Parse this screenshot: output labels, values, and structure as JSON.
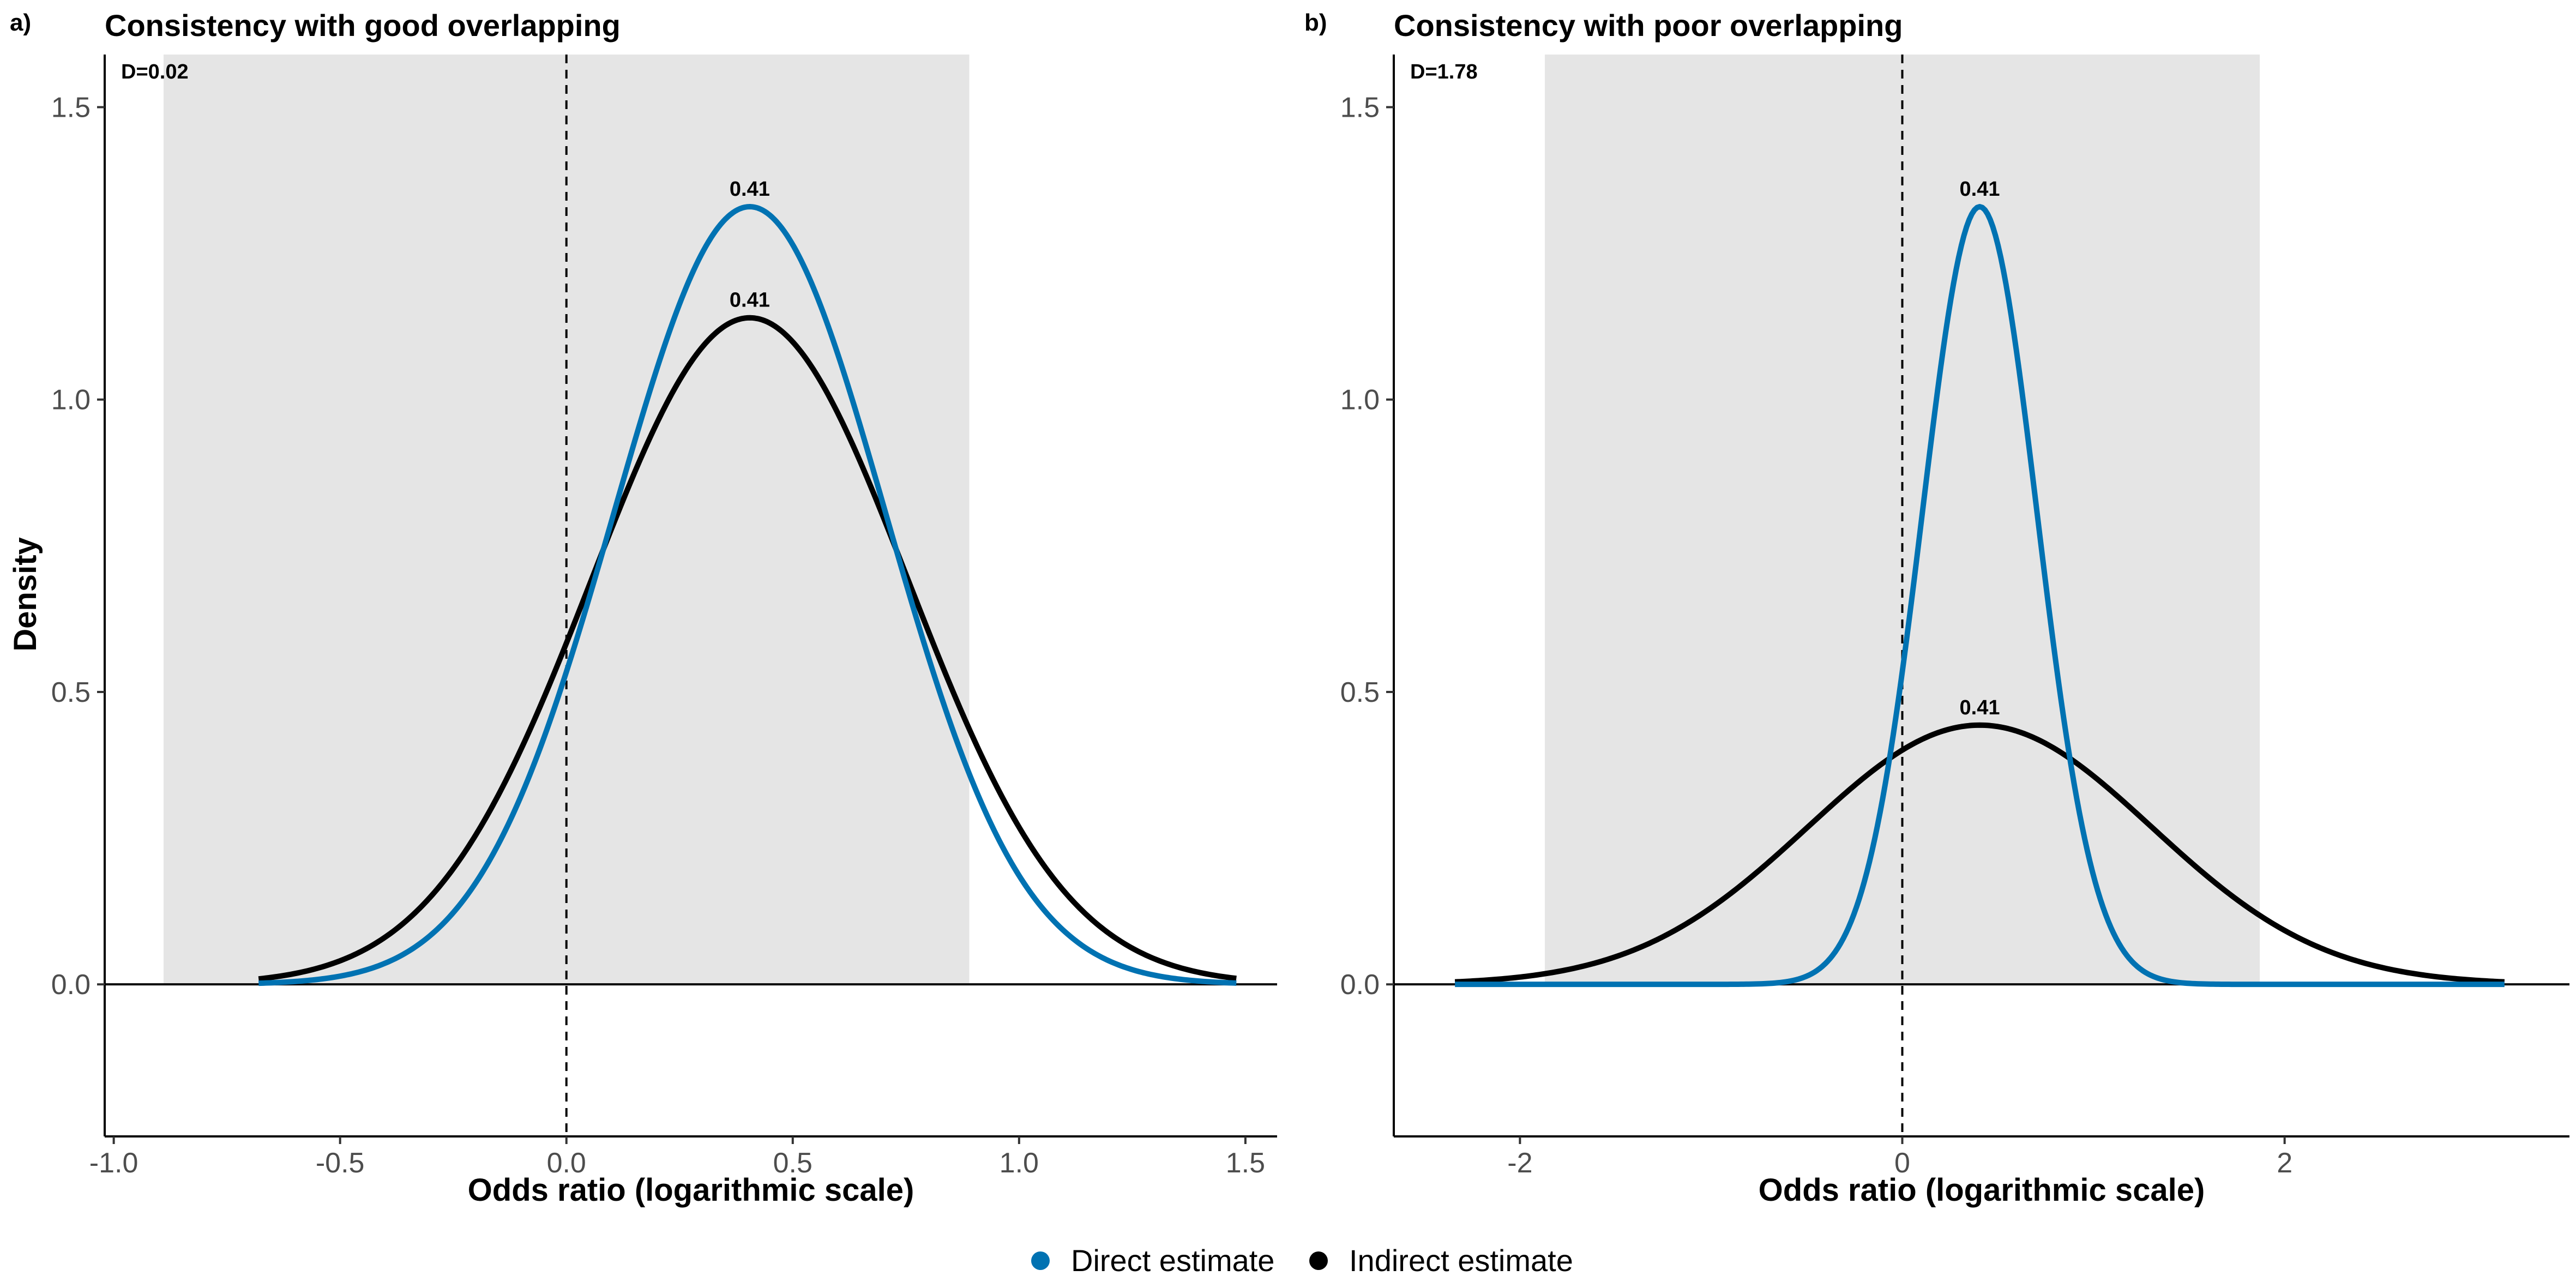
{
  "figure": {
    "ylabel": "Density",
    "legend": {
      "position": "bottom",
      "items": [
        {
          "label": "Direct estimate",
          "color": "#0072B2"
        },
        {
          "label": "Indirect estimate",
          "color": "#000000"
        }
      ]
    }
  },
  "chart_data": [
    {
      "type": "line",
      "panel_letter": "a)",
      "title": "Consistency with good overlapping",
      "xlabel": "Odds ratio (logarithmic scale)",
      "ylabel": "Density",
      "annotation": "D=0.02",
      "xlim": [
        -1.02,
        1.57
      ],
      "ylim": [
        -0.26,
        1.59
      ],
      "x_ticks": [
        -1.0,
        -0.5,
        0.0,
        0.5,
        1.0,
        1.5
      ],
      "x_tick_labels": [
        "-1.0",
        "-0.5",
        "0.0",
        "0.5",
        "1.0",
        "1.5"
      ],
      "y_ticks": [
        0.0,
        0.5,
        1.0,
        1.5
      ],
      "y_tick_labels": [
        "0.0",
        "0.5",
        "1.0",
        "1.5"
      ],
      "shaded_region": [
        -0.89,
        0.89
      ],
      "reference_line_x": 0,
      "grid": false,
      "series": [
        {
          "name": "Direct estimate",
          "color": "#0072B2",
          "mean": 0.405,
          "sd": 0.3,
          "x_range": [
            -0.68,
            1.48
          ],
          "peak_density": 1.33,
          "peak_label": "0.41"
        },
        {
          "name": "Indirect estimate",
          "color": "#000000",
          "mean": 0.405,
          "sd": 0.35,
          "x_range": [
            -0.68,
            1.48
          ],
          "peak_density": 1.14,
          "peak_label": "0.41"
        }
      ]
    },
    {
      "type": "line",
      "panel_letter": "b)",
      "title": "Consistency with poor overlapping",
      "xlabel": "Odds ratio (logarithmic scale)",
      "ylabel": "",
      "annotation": "D=1.78",
      "xlim": [
        -2.66,
        3.49
      ],
      "ylim": [
        -0.26,
        1.59
      ],
      "x_ticks": [
        -2,
        0,
        2
      ],
      "x_tick_labels": [
        "-2",
        "0",
        "2"
      ],
      "y_ticks": [
        0.0,
        0.5,
        1.0,
        1.5
      ],
      "y_tick_labels": [
        "0.0",
        "0.5",
        "1.0",
        "1.5"
      ],
      "shaded_region": [
        -1.87,
        1.87
      ],
      "reference_line_x": 0,
      "grid": false,
      "series": [
        {
          "name": "Direct estimate",
          "color": "#0072B2",
          "mean": 0.405,
          "sd": 0.3,
          "x_range": [
            -2.34,
            3.15
          ],
          "peak_density": 1.33,
          "peak_label": "0.41"
        },
        {
          "name": "Indirect estimate",
          "color": "#000000",
          "mean": 0.405,
          "sd": 0.9,
          "x_range": [
            -2.34,
            3.15
          ],
          "peak_density": 0.443,
          "peak_label": "0.41"
        }
      ]
    }
  ]
}
